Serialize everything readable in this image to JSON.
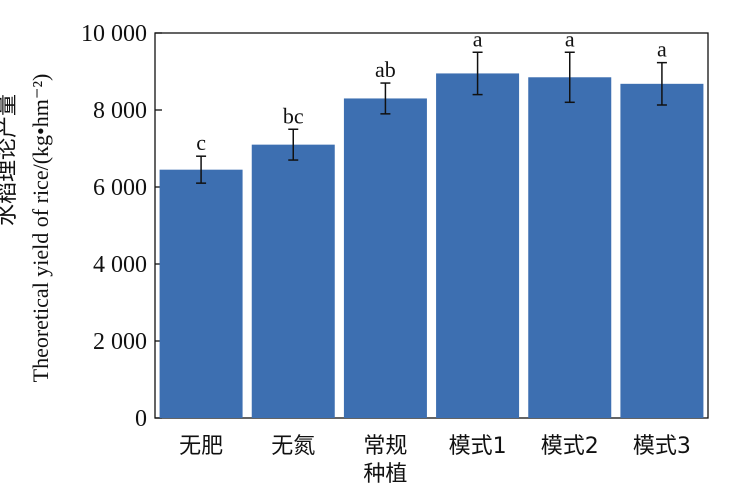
{
  "chart_data": {
    "type": "bar",
    "ylabel_cn": "水稻理论产量",
    "ylabel": "Theoretical yield of rice/(kg•hm⁻²)",
    "categories": [
      "无肥",
      "无氮",
      "常规\n种植",
      "模式1",
      "模式2",
      "模式3"
    ],
    "values": [
      6450,
      7100,
      8300,
      8950,
      8850,
      8680
    ],
    "errors": [
      350,
      400,
      400,
      550,
      650,
      550
    ],
    "significance": [
      "c",
      "bc",
      "ab",
      "a",
      "a",
      "a"
    ],
    "ylim": [
      0,
      10000
    ],
    "yticks": [
      0,
      2000,
      4000,
      6000,
      8000,
      10000
    ],
    "ytick_labels": [
      "0",
      "2 000",
      "4 000",
      "6 000",
      "8 000",
      "10 000"
    ],
    "bar_color": "#3d6fb1",
    "grid": false,
    "legend": "none"
  }
}
